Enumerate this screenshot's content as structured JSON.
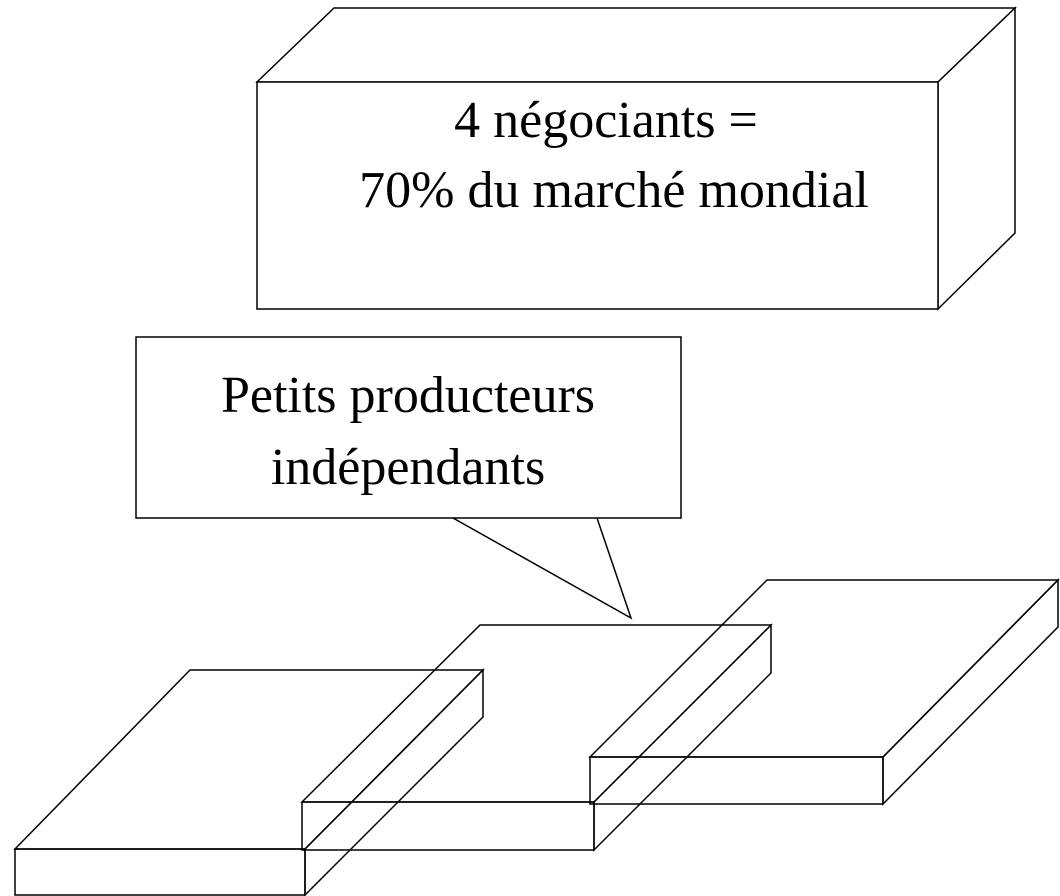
{
  "box": {
    "lines": [
      "4 négociants =",
      "70% du marché mondial"
    ]
  },
  "callout": {
    "lines": [
      "Petits producteurs",
      "indépendants"
    ]
  }
}
